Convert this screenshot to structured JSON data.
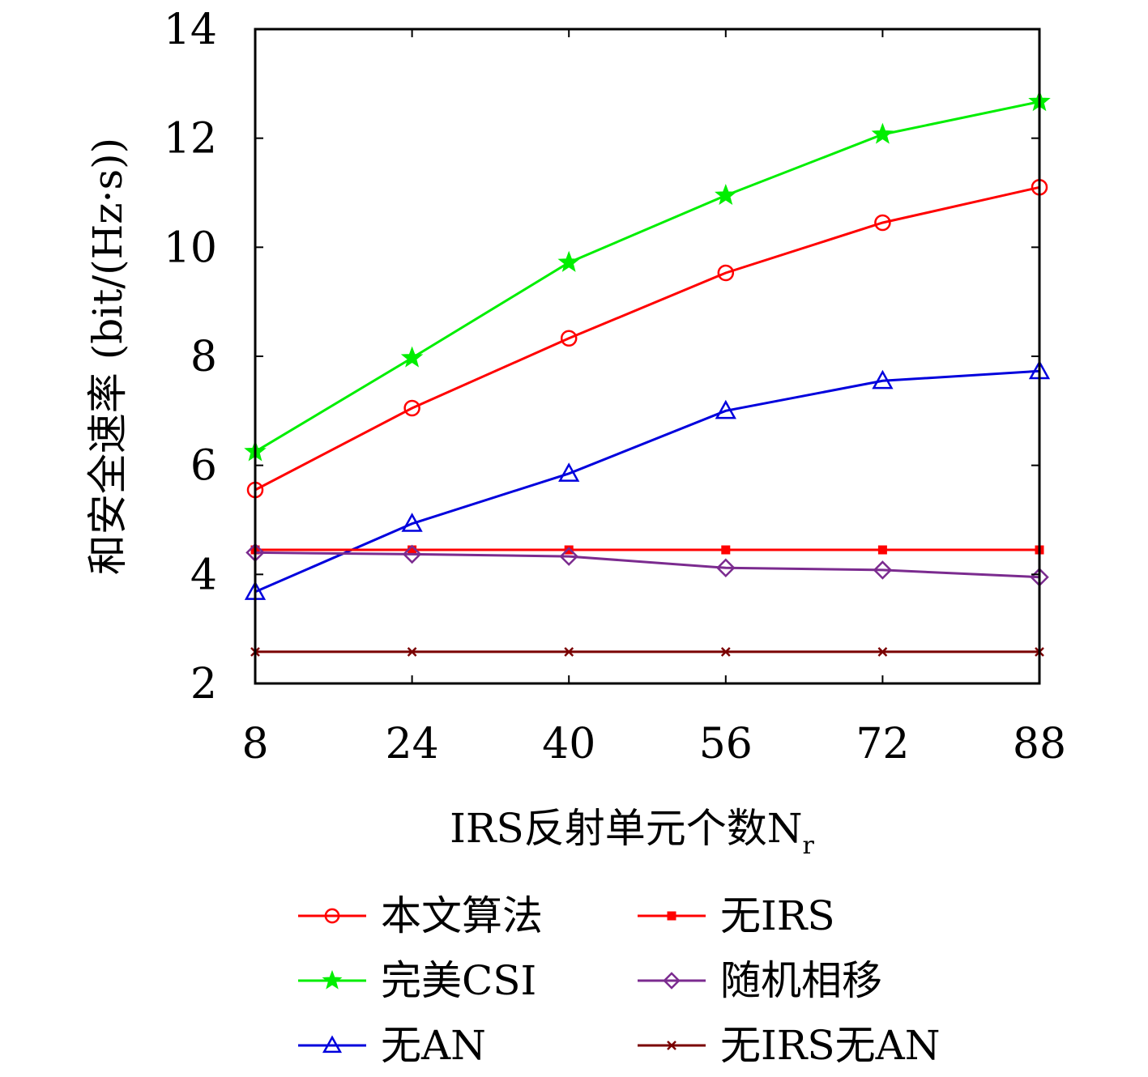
{
  "chart_data": {
    "type": "line",
    "title": "",
    "xlabel": "IRS反射单元个数N",
    "xlabel_subscript": "r",
    "ylabel": "和安全速率 (bit/(Hz·s))",
    "x": [
      8,
      24,
      40,
      56,
      72,
      88
    ],
    "xlim": [
      8,
      88
    ],
    "ylim": [
      2,
      14
    ],
    "x_ticks": [
      "8",
      "24",
      "40",
      "56",
      "72",
      "88"
    ],
    "y_ticks": [
      "2",
      "4",
      "6",
      "8",
      "10",
      "12",
      "14"
    ],
    "grid": false,
    "legend_position": "bottom",
    "series": [
      {
        "name": "本文算法",
        "color": "#ff0000",
        "marker": "circle",
        "values": [
          5.55,
          7.05,
          8.33,
          9.53,
          10.45,
          11.1
        ]
      },
      {
        "name": "完美CSI",
        "color": "#00ee00",
        "marker": "star",
        "values": [
          6.25,
          7.97,
          9.72,
          10.95,
          12.07,
          12.67
        ]
      },
      {
        "name": "无AN",
        "color": "#0000dd",
        "marker": "triangle",
        "values": [
          3.68,
          4.93,
          5.85,
          7.0,
          7.55,
          7.73
        ]
      },
      {
        "name": "无IRS",
        "color": "#ff0000",
        "marker": "square",
        "values": [
          4.45,
          4.45,
          4.45,
          4.45,
          4.45,
          4.45
        ]
      },
      {
        "name": "随机相移",
        "color": "#7b2b8f",
        "marker": "diamond",
        "values": [
          4.4,
          4.37,
          4.33,
          4.12,
          4.08,
          3.95
        ]
      },
      {
        "name": "无IRS无AN",
        "color": "#7a0000",
        "marker": "cross",
        "values": [
          2.58,
          2.58,
          2.58,
          2.58,
          2.58,
          2.58
        ]
      }
    ]
  }
}
